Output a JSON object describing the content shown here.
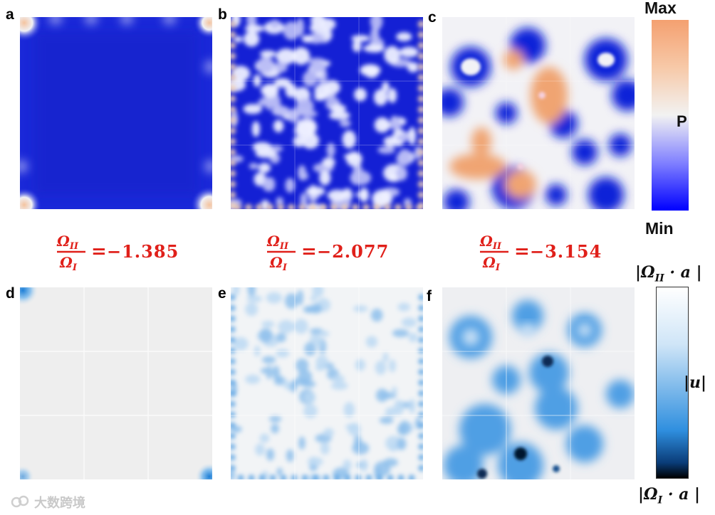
{
  "panels": {
    "a": {
      "letter": "a"
    },
    "b": {
      "letter": "b"
    },
    "c": {
      "letter": "c"
    },
    "d": {
      "letter": "d"
    },
    "e": {
      "letter": "e"
    },
    "f": {
      "letter": "f"
    }
  },
  "ratios": [
    {
      "numerator": "Ω",
      "numerator_sub": "II",
      "denominator": "Ω",
      "denominator_sub": "I",
      "equals": "=",
      "value": "−1.385"
    },
    {
      "numerator": "Ω",
      "numerator_sub": "II",
      "denominator": "Ω",
      "denominator_sub": "I",
      "equals": "=",
      "value": "−2.077"
    },
    {
      "numerator": "Ω",
      "numerator_sub": "II",
      "denominator": "Ω",
      "denominator_sub": "I",
      "equals": "=",
      "value": "−3.154"
    }
  ],
  "pressure_colorbar": {
    "max_label": "Max",
    "min_label": "Min",
    "var_label": "P",
    "colors": {
      "max": "#f4a070",
      "mid": "#f2f2f2",
      "min": "#0000ff"
    }
  },
  "displacement_colorbar": {
    "top_label": "|Ω",
    "top_sub": "II",
    "top_tail": " · a |",
    "bottom_label": "|Ω",
    "bottom_sub": "I",
    "bottom_tail": " · a |",
    "var_label": "|u|",
    "colors": {
      "top": "#ffffff",
      "mid": "#2f8fdf",
      "bottom": "#000000"
    }
  },
  "ratio_color": "#e0201a",
  "watermark": {
    "text": "大数跨境",
    "icon": "chain-link-icon"
  }
}
